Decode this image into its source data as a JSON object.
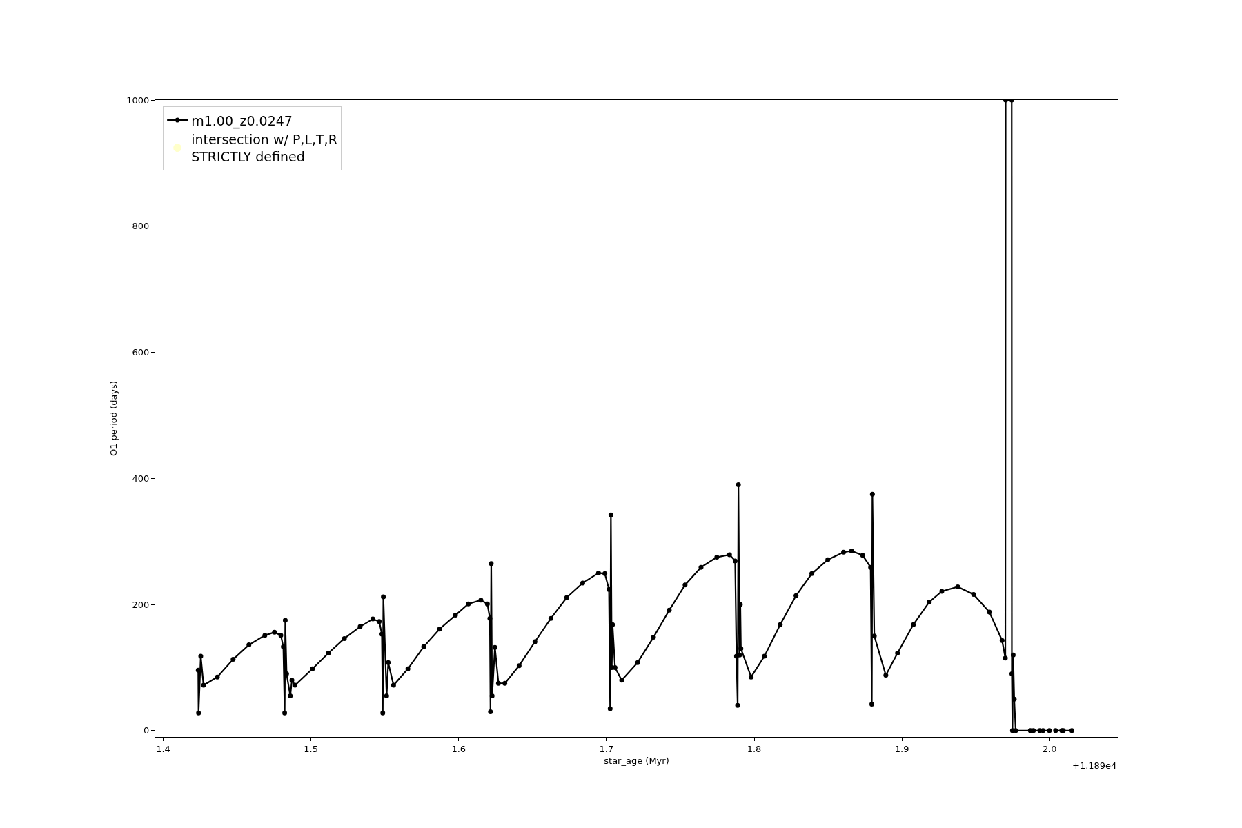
{
  "chart_data": {
    "type": "line",
    "xlabel": "star_age (Myr)",
    "ylabel": "O1 period (days)",
    "xlim": [
      1.3946,
      2.0461
    ],
    "ylim": [
      -10,
      1000
    ],
    "xticks": [
      1.4,
      1.5,
      1.6,
      1.7,
      1.8,
      1.9,
      {
        "value": 2,
        "label": "2.0"
      }
    ],
    "yticks": [
      0,
      200,
      400,
      600,
      800,
      1000
    ],
    "annotations": [
      "+1.189e4"
    ],
    "legend": "top left",
    "marker": "circle",
    "line_style": "solid",
    "series": [
      {
        "name": "m1.00_z0.0247",
        "color": "#000000",
        "x": [
          1.4237,
          1.4239,
          1.4254,
          1.4273,
          1.4366,
          1.4473,
          1.458,
          1.4688,
          1.4753,
          1.4796,
          1.4813,
          1.4822,
          1.4826,
          1.4835,
          1.486,
          1.4871,
          1.4892,
          1.501,
          1.5118,
          1.5226,
          1.5333,
          1.5419,
          1.5462,
          1.548,
          1.5486,
          1.549,
          1.5512,
          1.5523,
          1.5559,
          1.5656,
          1.5763,
          1.587,
          1.5978,
          1.6065,
          1.615,
          1.6194,
          1.6211,
          1.6215,
          1.622,
          1.6226,
          1.6245,
          1.6269,
          1.6312,
          1.6409,
          1.6516,
          1.6624,
          1.6731,
          1.6839,
          1.6946,
          1.6989,
          1.7017,
          1.7025,
          1.703,
          1.7036,
          1.7041,
          1.7058,
          1.7103,
          1.7211,
          1.7318,
          1.7425,
          1.7532,
          1.764,
          1.7747,
          1.7833,
          1.7871,
          1.788,
          1.7888,
          1.7893,
          1.7901,
          1.7906,
          1.791,
          1.7979,
          1.8069,
          1.8176,
          1.8283,
          1.839,
          1.8498,
          1.8605,
          1.8659,
          1.8734,
          1.8788,
          1.8796,
          1.88,
          1.8813,
          1.8891,
          1.897,
          1.9077,
          1.9185,
          1.927,
          1.9378,
          1.9485,
          1.9592,
          1.9678,
          1.97,
          1.9702,
          1.9743,
          1.9744,
          1.9748,
          1.9753,
          1.976,
          1.977,
          1.9869,
          null,
          1.989,
          1.9933,
          null,
          1.9955,
          1.9998,
          null,
          2.004,
          2.0082,
          null,
          2.0092,
          2.015
        ],
        "values": [
          96,
          28,
          118,
          72,
          85,
          113,
          136,
          151,
          156,
          151,
          133,
          28,
          175,
          90,
          55,
          80,
          72,
          98,
          123,
          146,
          165,
          177,
          173,
          153,
          28,
          212,
          55,
          108,
          72,
          98,
          133,
          161,
          183,
          201,
          207,
          201,
          178,
          30,
          265,
          55,
          132,
          75,
          75,
          103,
          141,
          178,
          211,
          234,
          250,
          249,
          224,
          35,
          342,
          100,
          168,
          100,
          80,
          108,
          148,
          191,
          231,
          259,
          275,
          279,
          269,
          118,
          40,
          390,
          120,
          200,
          130,
          85,
          118,
          168,
          214,
          249,
          271,
          283,
          285,
          278,
          259,
          42,
          375,
          150,
          88,
          123,
          168,
          204,
          221,
          228,
          216,
          188,
          143,
          115,
          1000,
          1000,
          90,
          0,
          120,
          50,
          0,
          0,
          null,
          0,
          0,
          null,
          0,
          0,
          null,
          0,
          0,
          null,
          0,
          0
        ]
      },
      {
        "name": "intersection w/ P,L,T,R\nSTRICTLY defined",
        "type": "scatter",
        "color": "#ffffb3"
      }
    ]
  }
}
